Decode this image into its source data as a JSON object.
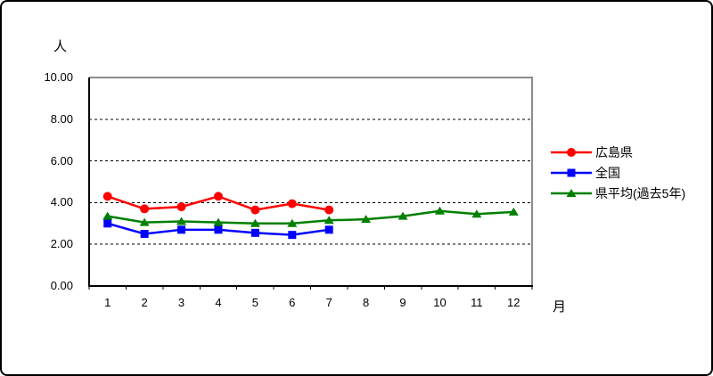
{
  "chart_data": {
    "type": "line",
    "title": "",
    "ylabel": "人",
    "xlabel": "月",
    "x": [
      1,
      2,
      3,
      4,
      5,
      6,
      7,
      8,
      9,
      10,
      11,
      12
    ],
    "xtick_labels": [
      "1",
      "2",
      "3",
      "4",
      "5",
      "6",
      "7",
      "8",
      "9",
      "10",
      "11",
      "12"
    ],
    "ylim": [
      0,
      10
    ],
    "yticks": [
      0,
      2,
      4,
      6,
      8,
      10
    ],
    "ytick_labels": [
      "0.00",
      "2.00",
      "4.00",
      "6.00",
      "8.00",
      "10.00"
    ],
    "grid": true,
    "gridline_style": "dashed",
    "legend_position": "right",
    "plot_border_color": "#8c8c8c",
    "axis_color": "#000000",
    "series": [
      {
        "name": "広島県",
        "color": "#ff0000",
        "marker": "circle",
        "values": [
          4.3,
          3.7,
          3.8,
          4.3,
          3.65,
          3.95,
          3.65
        ]
      },
      {
        "name": "全国",
        "color": "#0000ff",
        "marker": "square",
        "values": [
          3.0,
          2.5,
          2.7,
          2.7,
          2.55,
          2.45,
          2.7
        ]
      },
      {
        "name": "県平均(過去5年)",
        "color": "#008000",
        "marker": "triangle",
        "values": [
          3.35,
          3.05,
          3.1,
          3.05,
          3.0,
          3.0,
          3.15,
          3.2,
          3.35,
          3.6,
          3.45,
          3.55
        ]
      }
    ]
  }
}
